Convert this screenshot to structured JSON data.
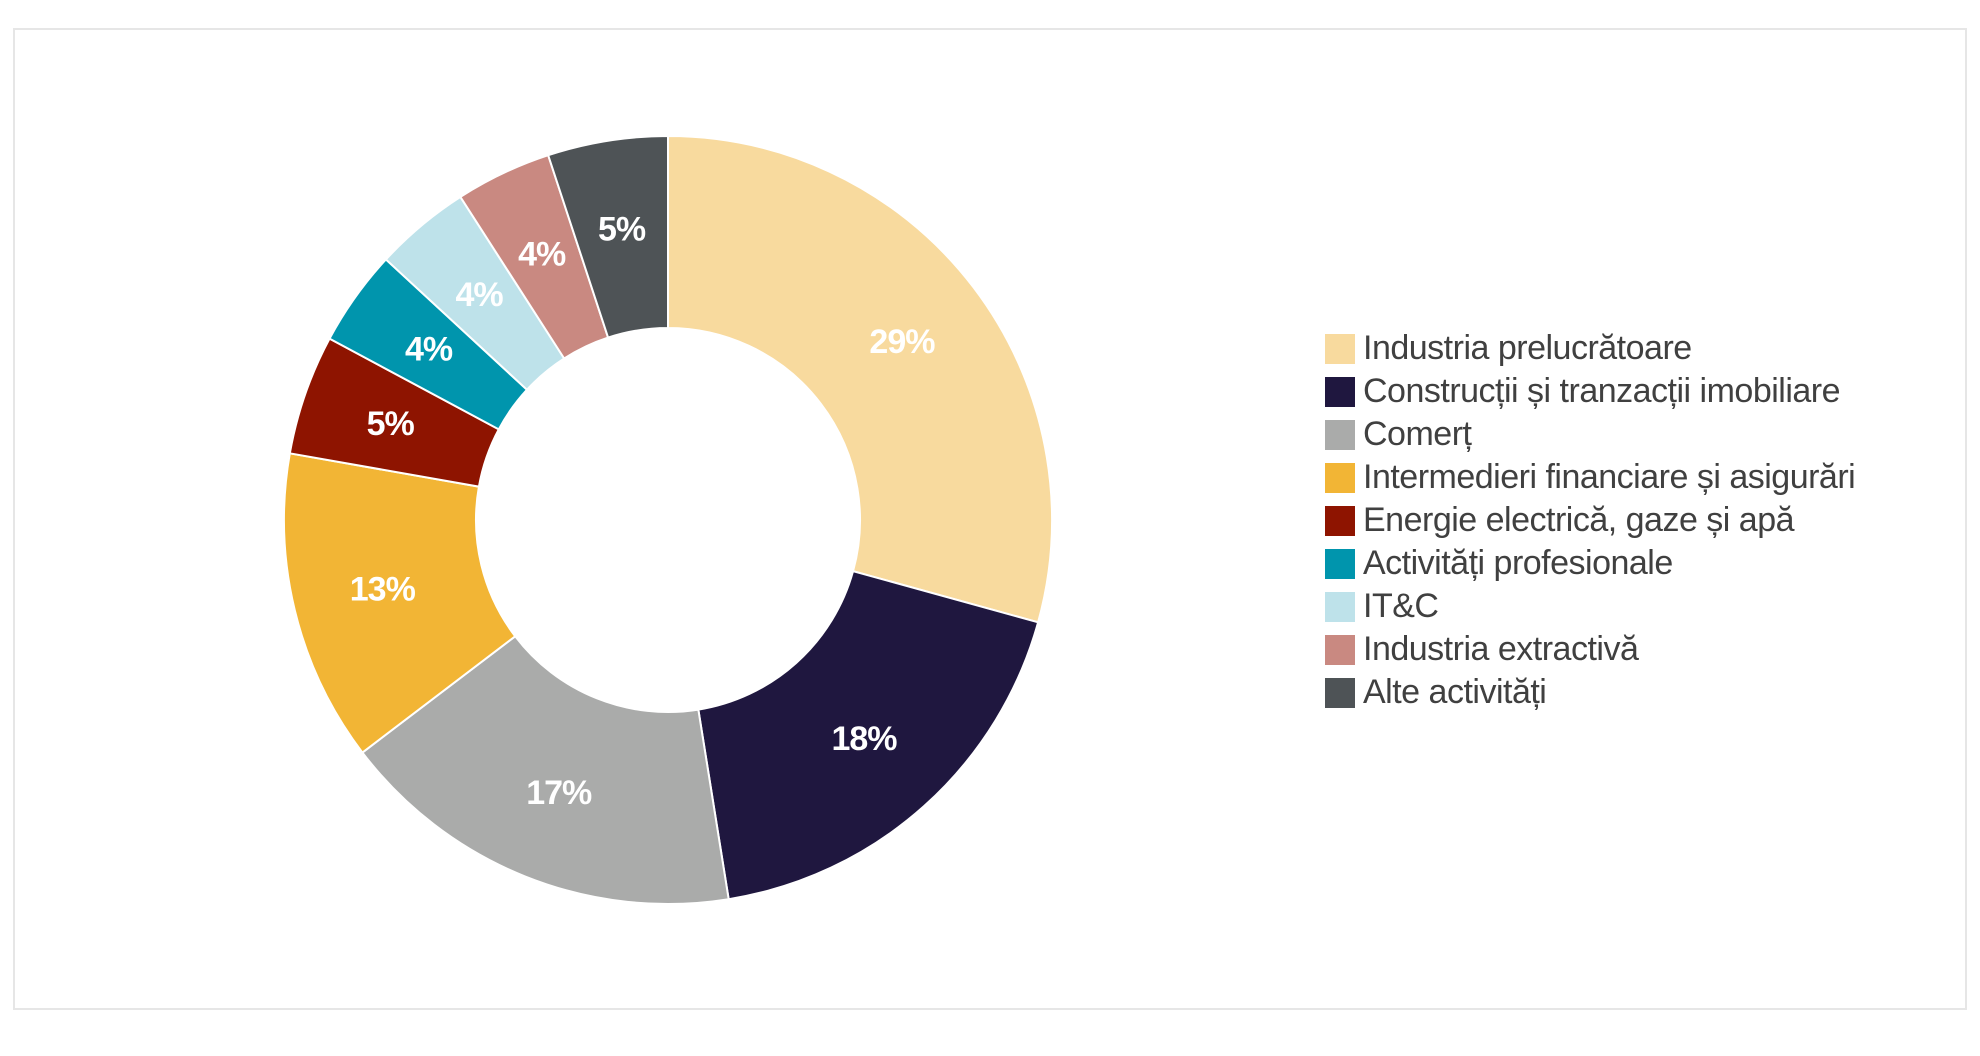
{
  "chart_data": {
    "type": "pie",
    "variant": "donut",
    "title": "",
    "legend_position": "right",
    "slices": [
      {
        "label": "Industria prelucrătoare",
        "value": 29,
        "value_label": "29%",
        "color": "#F8DA9E"
      },
      {
        "label": "Construcții și tranzacții imobiliare",
        "value": 18,
        "value_label": "18%",
        "color": "#1F173F"
      },
      {
        "label": "Comerț",
        "value": 17,
        "value_label": "17%",
        "color": "#AAABAA"
      },
      {
        "label": "Intermedieri financiare și asigurări",
        "value": 13,
        "value_label": "13%",
        "color": "#F2B535"
      },
      {
        "label": "Energie electrică, gaze și apă",
        "value": 5,
        "value_label": "5%",
        "color": "#8E1400"
      },
      {
        "label": "Activități profesionale",
        "value": 4,
        "value_label": "4%",
        "color": "#0095AD"
      },
      {
        "label": "IT&C",
        "value": 4,
        "value_label": "4%",
        "color": "#BEE2EA"
      },
      {
        "label": "Industria extractivă",
        "value": 4,
        "value_label": "4%",
        "color": "#C98981"
      },
      {
        "label": "Alte activități",
        "value": 5,
        "value_label": "5%",
        "color": "#4E5356"
      }
    ]
  }
}
